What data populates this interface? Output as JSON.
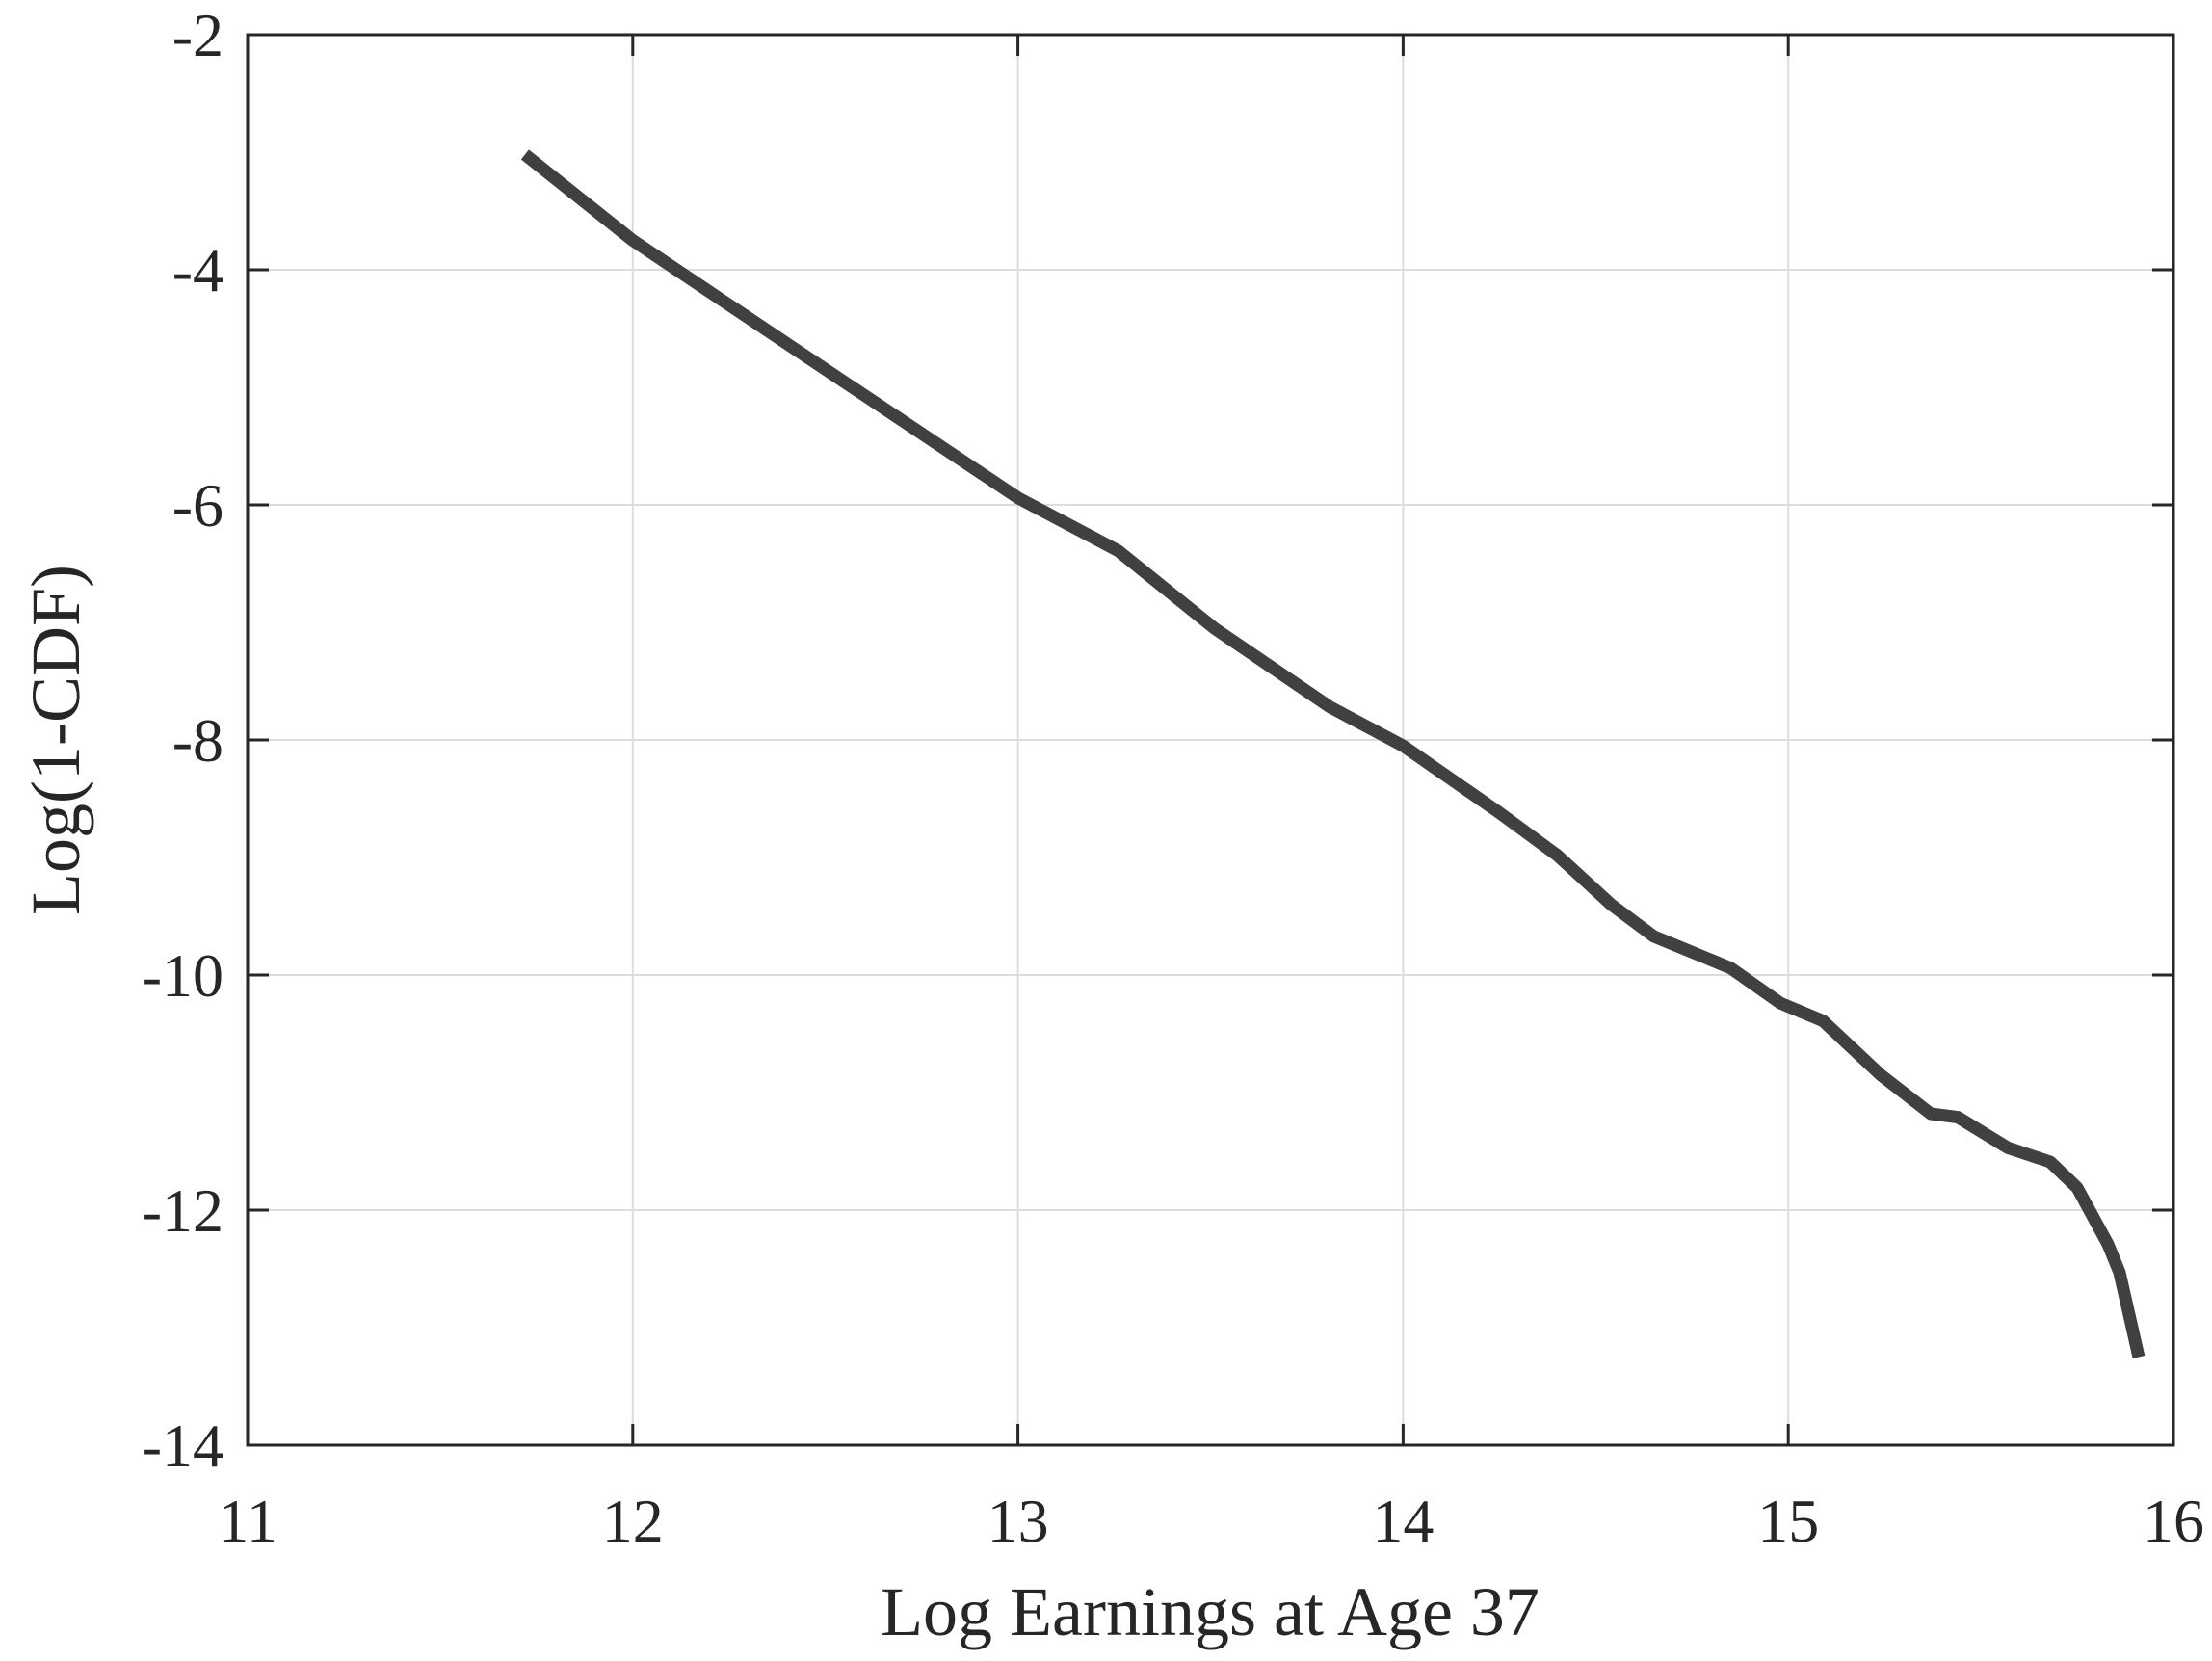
{
  "chart_data": {
    "type": "line",
    "title": "",
    "xlabel": "Log Earnings at Age 37",
    "ylabel": "Log(1-CDF)",
    "xlim": [
      11,
      16
    ],
    "ylim": [
      -14,
      -2
    ],
    "xticks": [
      "11",
      "12",
      "13",
      "14",
      "15",
      "16"
    ],
    "yticks": [
      "-2",
      "-4",
      "-6",
      "-8",
      "-10",
      "-12",
      "-14"
    ],
    "grid": true,
    "line_color": "#404040",
    "series": [
      {
        "x": [
          11.72,
          12.0,
          12.41,
          13.0,
          13.26,
          13.51,
          13.81,
          14.0,
          14.25,
          14.4,
          14.54,
          14.65,
          14.85,
          14.98,
          15.09,
          15.24,
          15.37,
          15.44,
          15.57,
          15.68,
          15.75,
          15.83,
          15.86,
          15.91
        ],
        "y": [
          -3.02,
          -3.75,
          -4.65,
          -5.94,
          -6.39,
          -7.05,
          -7.72,
          -8.05,
          -8.62,
          -8.98,
          -9.4,
          -9.67,
          -9.94,
          -10.24,
          -10.39,
          -10.85,
          -11.18,
          -11.21,
          -11.47,
          -11.59,
          -11.81,
          -12.29,
          -12.53,
          -13.25
        ]
      }
    ]
  }
}
